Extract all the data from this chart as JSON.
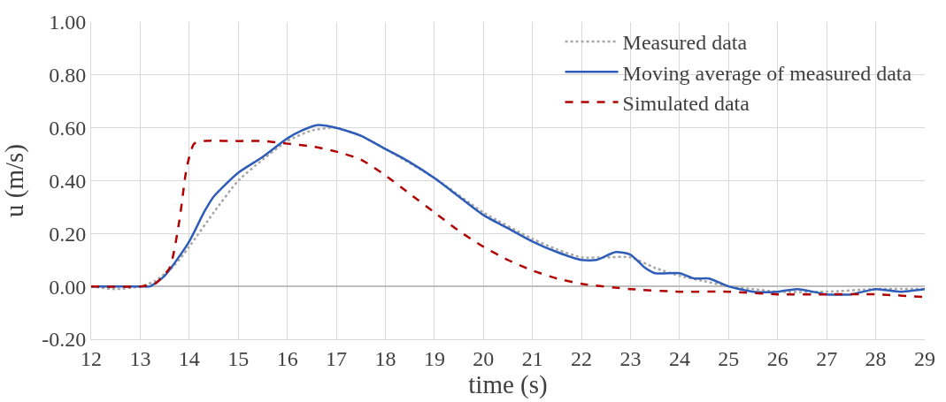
{
  "chart_data": {
    "type": "line",
    "xlabel": "time (s)",
    "ylabel": "u (m/s)",
    "xlim": [
      12,
      29
    ],
    "xticks": [
      12,
      13,
      14,
      15,
      16,
      17,
      18,
      19,
      20,
      21,
      22,
      23,
      24,
      25,
      26,
      27,
      28,
      29
    ],
    "ylim": [
      -0.2,
      1.0
    ],
    "yticks": [
      {
        "value": -0.2,
        "label": "-0.20"
      },
      {
        "value": 0,
        "label": "0.00"
      },
      {
        "value": 0.2,
        "label": "0.20"
      },
      {
        "value": 0.4,
        "label": "0.40"
      },
      {
        "value": 0.6,
        "label": "0.60"
      },
      {
        "value": 0.8,
        "label": "0.80"
      },
      {
        "value": 1.0,
        "label": "1.00"
      }
    ],
    "grid": true,
    "legend": "top right",
    "marker": "none",
    "series": [
      {
        "name": "Measured data",
        "color": "#a6a6a6",
        "line_style": "dotted",
        "x": [
          12,
          12.5,
          13,
          13.3,
          13.7,
          14,
          14.5,
          15,
          15.5,
          16,
          16.5,
          17,
          17.5,
          18,
          19,
          20,
          21,
          21.5,
          22,
          22.5,
          23,
          23.5,
          24,
          24.5,
          25,
          25.5,
          26,
          27,
          28,
          29
        ],
        "values": [
          0,
          -0.01,
          0,
          0.02,
          0.08,
          0.15,
          0.28,
          0.4,
          0.48,
          0.55,
          0.59,
          0.6,
          0.57,
          0.52,
          0.41,
          0.28,
          0.18,
          0.14,
          0.11,
          0.11,
          0.11,
          0.07,
          0.04,
          0.02,
          0,
          -0.01,
          -0.02,
          -0.02,
          -0.01,
          -0.01
        ]
      },
      {
        "name": "Moving average of measured data",
        "color": "#2e5cb8",
        "line_style": "solid",
        "x": [
          12,
          13,
          13.2,
          13.5,
          14,
          14.3,
          14.5,
          15,
          15.5,
          16,
          16.3,
          16.6,
          17,
          17.5,
          18,
          18.5,
          19,
          19.5,
          20,
          20.5,
          21,
          21.5,
          22,
          22.3,
          22.7,
          23,
          23.3,
          23.5,
          24,
          24.3,
          24.6,
          25,
          25.5,
          26,
          26.4,
          27,
          27.5,
          28,
          28.5,
          29
        ],
        "values": [
          0,
          0,
          0,
          0.04,
          0.17,
          0.28,
          0.34,
          0.43,
          0.49,
          0.56,
          0.59,
          0.61,
          0.6,
          0.57,
          0.52,
          0.47,
          0.41,
          0.34,
          0.27,
          0.22,
          0.17,
          0.13,
          0.1,
          0.1,
          0.13,
          0.12,
          0.07,
          0.05,
          0.05,
          0.03,
          0.03,
          0,
          -0.02,
          -0.02,
          -0.01,
          -0.03,
          -0.03,
          -0.01,
          -0.02,
          -0.01
        ]
      },
      {
        "name": "Simulated data",
        "color": "#b00000",
        "line_style": "dashed",
        "x": [
          12,
          13,
          13.3,
          13.6,
          13.8,
          13.95,
          14.1,
          14.3,
          15,
          15.5,
          16,
          16.5,
          17,
          17.5,
          18,
          18.5,
          19,
          19.5,
          20,
          20.5,
          21,
          21.5,
          22,
          23,
          24,
          25,
          26,
          27,
          28,
          29
        ],
        "values": [
          0,
          0,
          0.01,
          0.07,
          0.25,
          0.45,
          0.54,
          0.55,
          0.55,
          0.55,
          0.54,
          0.53,
          0.51,
          0.48,
          0.42,
          0.35,
          0.28,
          0.21,
          0.15,
          0.1,
          0.06,
          0.03,
          0.01,
          -0.01,
          -0.02,
          -0.02,
          -0.03,
          -0.03,
          -0.03,
          -0.04
        ]
      }
    ]
  }
}
